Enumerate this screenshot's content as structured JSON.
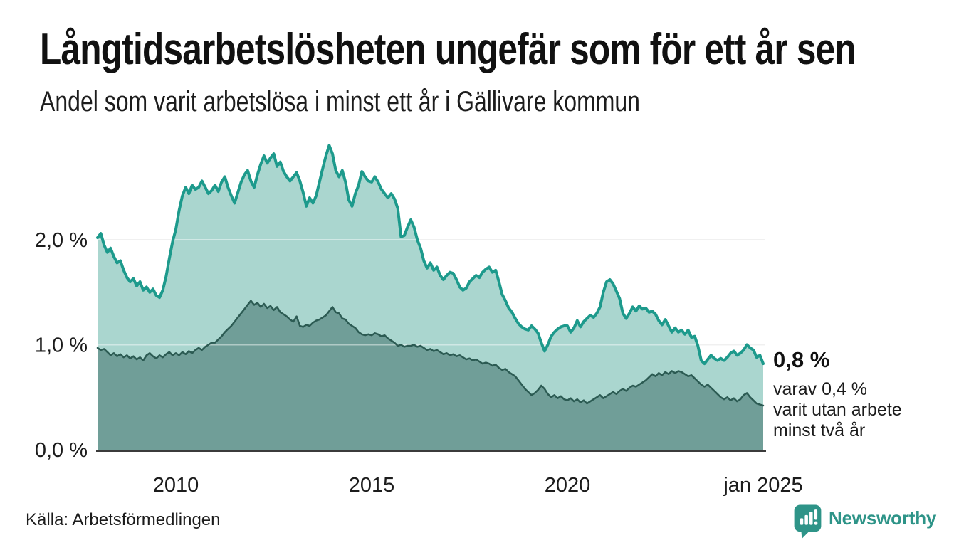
{
  "header": {
    "title": "Långtidsarbetslösheten ungefär som för ett år sen",
    "subtitle": "Andel som varit arbetslösa i minst ett år i Gällivare kommun"
  },
  "chart_data": {
    "type": "area",
    "title": "Långtidsarbetslösheten ungefär som för ett år sen",
    "ylabel": "",
    "xlabel": "",
    "x_start_year": 2008,
    "x_step_months": 1,
    "ylim": [
      0,
      2.95
    ],
    "grid": true,
    "grid_color": "#e4e4e4",
    "axis_color": "#3b3b3b",
    "legend": "none",
    "yticks": [
      {
        "value": 0,
        "label": "0,0 %"
      },
      {
        "value": 1,
        "label": "1,0 %"
      },
      {
        "value": 2,
        "label": "2,0 %"
      }
    ],
    "xticks": [
      {
        "year": 2010,
        "label": "2010"
      },
      {
        "year": 2015,
        "label": "2015"
      },
      {
        "year": 2020,
        "label": "2020"
      },
      {
        "year": 2025,
        "label": "jan 2025"
      }
    ],
    "series": [
      {
        "name": "arbetslosa-minst-ett-ar",
        "line_color": "#1d9a8c",
        "fill_color": "#aad6cf",
        "end_value_label": "0,8 %",
        "values": [
          2.02,
          2.06,
          1.95,
          1.88,
          1.92,
          1.84,
          1.78,
          1.8,
          1.71,
          1.64,
          1.6,
          1.63,
          1.56,
          1.6,
          1.52,
          1.55,
          1.5,
          1.53,
          1.47,
          1.45,
          1.52,
          1.65,
          1.82,
          1.98,
          2.1,
          2.28,
          2.42,
          2.5,
          2.44,
          2.52,
          2.48,
          2.5,
          2.56,
          2.5,
          2.44,
          2.47,
          2.52,
          2.46,
          2.55,
          2.6,
          2.5,
          2.42,
          2.35,
          2.45,
          2.55,
          2.62,
          2.66,
          2.56,
          2.5,
          2.62,
          2.72,
          2.8,
          2.73,
          2.78,
          2.82,
          2.7,
          2.74,
          2.65,
          2.6,
          2.56,
          2.6,
          2.64,
          2.56,
          2.45,
          2.32,
          2.4,
          2.35,
          2.42,
          2.55,
          2.68,
          2.8,
          2.9,
          2.82,
          2.66,
          2.6,
          2.66,
          2.55,
          2.38,
          2.32,
          2.44,
          2.52,
          2.65,
          2.6,
          2.56,
          2.55,
          2.6,
          2.55,
          2.48,
          2.44,
          2.4,
          2.44,
          2.39,
          2.3,
          2.03,
          2.04,
          2.12,
          2.19,
          2.12,
          2.0,
          1.92,
          1.8,
          1.73,
          1.78,
          1.71,
          1.74,
          1.66,
          1.62,
          1.66,
          1.69,
          1.68,
          1.62,
          1.55,
          1.52,
          1.54,
          1.6,
          1.63,
          1.66,
          1.64,
          1.69,
          1.72,
          1.74,
          1.69,
          1.71,
          1.6,
          1.48,
          1.42,
          1.35,
          1.31,
          1.25,
          1.2,
          1.17,
          1.15,
          1.14,
          1.18,
          1.15,
          1.11,
          1.02,
          0.94,
          1.0,
          1.08,
          1.12,
          1.15,
          1.17,
          1.18,
          1.18,
          1.12,
          1.16,
          1.23,
          1.17,
          1.22,
          1.25,
          1.28,
          1.26,
          1.3,
          1.36,
          1.5,
          1.6,
          1.62,
          1.58,
          1.51,
          1.44,
          1.3,
          1.25,
          1.3,
          1.36,
          1.32,
          1.37,
          1.34,
          1.35,
          1.31,
          1.32,
          1.29,
          1.23,
          1.19,
          1.24,
          1.18,
          1.12,
          1.16,
          1.12,
          1.14,
          1.1,
          1.14,
          1.07,
          1.08,
          0.99,
          0.85,
          0.82,
          0.86,
          0.9,
          0.87,
          0.85,
          0.87,
          0.85,
          0.88,
          0.92,
          0.94,
          0.9,
          0.92,
          0.95,
          1.0,
          0.97,
          0.95,
          0.88,
          0.9,
          0.82
        ]
      },
      {
        "name": "arbetslosa-minst-tva-ar",
        "line_color": "#2c5b53",
        "fill_color": "#709e98",
        "end_value_label": "0,4 %",
        "values": [
          0.97,
          0.95,
          0.96,
          0.93,
          0.9,
          0.92,
          0.89,
          0.91,
          0.88,
          0.9,
          0.87,
          0.89,
          0.86,
          0.88,
          0.85,
          0.9,
          0.92,
          0.89,
          0.87,
          0.9,
          0.88,
          0.91,
          0.93,
          0.9,
          0.92,
          0.9,
          0.93,
          0.91,
          0.94,
          0.92,
          0.95,
          0.97,
          0.95,
          0.98,
          1.0,
          1.02,
          1.02,
          1.05,
          1.08,
          1.12,
          1.15,
          1.18,
          1.22,
          1.26,
          1.3,
          1.34,
          1.38,
          1.42,
          1.38,
          1.4,
          1.36,
          1.39,
          1.35,
          1.37,
          1.33,
          1.36,
          1.31,
          1.29,
          1.27,
          1.24,
          1.22,
          1.27,
          1.18,
          1.17,
          1.19,
          1.18,
          1.21,
          1.23,
          1.24,
          1.26,
          1.28,
          1.32,
          1.36,
          1.31,
          1.3,
          1.25,
          1.24,
          1.2,
          1.18,
          1.16,
          1.12,
          1.1,
          1.09,
          1.1,
          1.09,
          1.11,
          1.1,
          1.08,
          1.09,
          1.06,
          1.04,
          1.02,
          0.99,
          1.0,
          0.98,
          0.99,
          0.99,
          1.0,
          0.98,
          0.99,
          0.97,
          0.95,
          0.96,
          0.94,
          0.95,
          0.93,
          0.91,
          0.92,
          0.9,
          0.91,
          0.89,
          0.9,
          0.88,
          0.86,
          0.87,
          0.85,
          0.86,
          0.84,
          0.82,
          0.83,
          0.82,
          0.8,
          0.81,
          0.78,
          0.76,
          0.77,
          0.74,
          0.72,
          0.7,
          0.66,
          0.62,
          0.58,
          0.55,
          0.52,
          0.54,
          0.57,
          0.61,
          0.58,
          0.53,
          0.5,
          0.52,
          0.49,
          0.51,
          0.48,
          0.47,
          0.49,
          0.46,
          0.48,
          0.45,
          0.47,
          0.44,
          0.46,
          0.48,
          0.5,
          0.52,
          0.49,
          0.51,
          0.53,
          0.55,
          0.53,
          0.56,
          0.58,
          0.56,
          0.59,
          0.61,
          0.6,
          0.62,
          0.64,
          0.66,
          0.69,
          0.72,
          0.7,
          0.73,
          0.71,
          0.74,
          0.72,
          0.75,
          0.73,
          0.75,
          0.74,
          0.72,
          0.7,
          0.71,
          0.68,
          0.65,
          0.62,
          0.6,
          0.62,
          0.59,
          0.56,
          0.53,
          0.5,
          0.48,
          0.5,
          0.47,
          0.49,
          0.46,
          0.48,
          0.52,
          0.54,
          0.5,
          0.47,
          0.44,
          0.43,
          0.42
        ]
      }
    ]
  },
  "annotation": {
    "value_label": "0,8 %",
    "detail": "varav 0,4 %\nvarit utan arbete\nminst två år"
  },
  "footer": {
    "source": "Källa: Arbetsförmedlingen",
    "brand": "Newsworthy"
  },
  "colors": {
    "brand_teal": "#2e9488",
    "line_1yr": "#1d9a8c",
    "fill_1yr": "#aad6cf",
    "line_2yr": "#2c5b53",
    "fill_2yr": "#709e98",
    "grid": "#e4e4e4",
    "axis": "#3b3b3b",
    "text": "#1c1c1c"
  }
}
